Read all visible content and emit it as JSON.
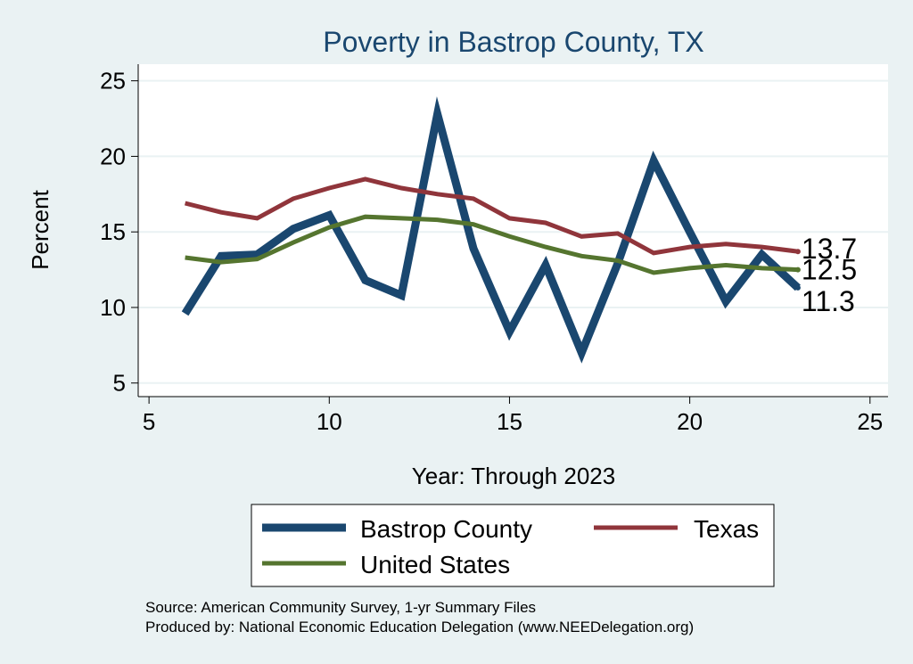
{
  "chart_data": {
    "type": "line",
    "title": "Poverty in Bastrop County, TX",
    "xlabel": "Year: Through 2023",
    "ylabel": "Percent",
    "xlim": [
      4.7,
      25.5
    ],
    "ylim": [
      4.1,
      26.1
    ],
    "xticks": [
      5,
      10,
      15,
      20,
      25
    ],
    "yticks": [
      5,
      10,
      15,
      20,
      25
    ],
    "grid": true,
    "series": [
      {
        "name": "Bastrop County",
        "color": "#1a476f",
        "x": [
          6,
          7,
          8,
          9,
          10,
          11,
          12,
          13,
          14,
          15,
          16,
          17,
          18,
          19,
          20,
          21,
          22,
          23
        ],
        "values": [
          9.6,
          13.4,
          13.5,
          15.2,
          16.1,
          11.8,
          10.8,
          22.8,
          13.9,
          8.4,
          12.8,
          7.0,
          12.9,
          19.7,
          15.0,
          10.4,
          13.5,
          11.3
        ],
        "end_label": "11.3"
      },
      {
        "name": "Texas",
        "color": "#90353b",
        "x": [
          6,
          7,
          8,
          9,
          10,
          11,
          12,
          13,
          14,
          15,
          16,
          17,
          18,
          19,
          20,
          21,
          22,
          23
        ],
        "values": [
          16.9,
          16.3,
          15.9,
          17.2,
          17.9,
          18.5,
          17.9,
          17.5,
          17.2,
          15.9,
          15.6,
          14.7,
          14.9,
          13.6,
          14.0,
          14.2,
          14.0,
          13.7
        ],
        "end_label": "13.7"
      },
      {
        "name": "United States",
        "color": "#55752f",
        "x": [
          6,
          7,
          8,
          9,
          10,
          11,
          12,
          13,
          14,
          15,
          16,
          17,
          18,
          19,
          20,
          21,
          22,
          23
        ],
        "values": [
          13.3,
          13.0,
          13.2,
          14.3,
          15.3,
          16.0,
          15.9,
          15.8,
          15.5,
          14.7,
          14.0,
          13.4,
          13.1,
          12.3,
          12.6,
          12.8,
          12.6,
          12.5
        ],
        "end_label": "12.5"
      }
    ],
    "legend": {
      "placement": "bottom",
      "entries": [
        "Bastrop County",
        "Texas",
        "United States"
      ]
    }
  },
  "footer": {
    "source": "Source: American Community Survey, 1-yr Summary Files",
    "produced_by": "Produced by: National Economic Education Delegation (www.NEEDelegation.org)"
  },
  "colors": {
    "background": "#eaf2f3",
    "plot_background": "#ffffff",
    "title": "#1a476f",
    "grid": "#eaf2f3"
  }
}
